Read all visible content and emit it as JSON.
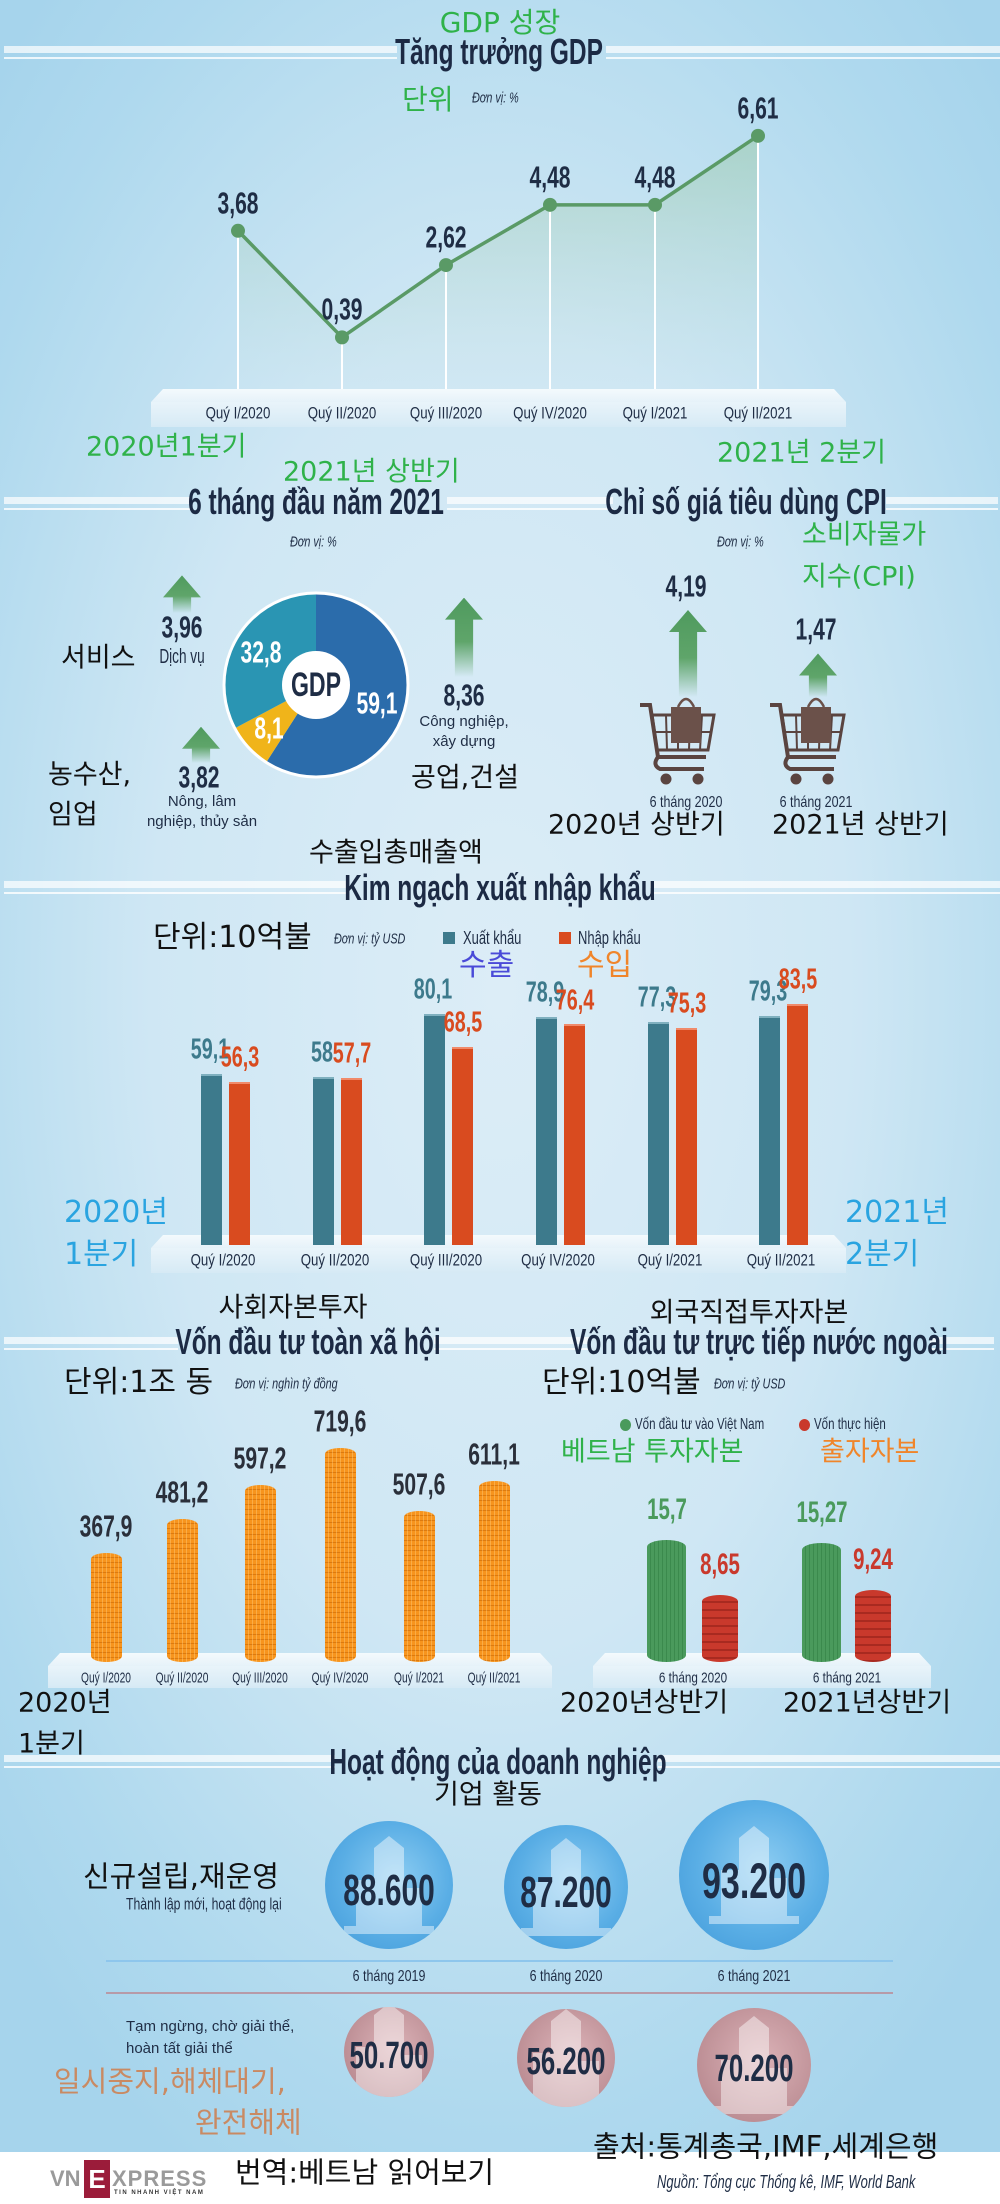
{
  "gdp": {
    "title_ko": "GDP 성장",
    "unit_ko": "단위",
    "unit": "Đơn vị: %",
    "note_start_ko": "2020년1분기",
    "note_half_ko": "2021년 상반기",
    "note_end_ko": "2021년 2분기"
  },
  "structure": {
    "unit": "Đơn vị: %",
    "center": "GDP",
    "services_ko": "서비스",
    "agri_ko_1": "농수산,",
    "agri_ko_2": "임업",
    "industry_ko": "공업,건설"
  },
  "cpi": {
    "unit": "Đơn vị: %",
    "title_ko_1": "소비자물가",
    "title_ko_2": "지수(CPI)",
    "period_ko": [
      "2020년 상반기",
      "2021년 상반기"
    ]
  },
  "trade": {
    "title_ko": "수출입총매출액",
    "unit_ko": "단위:10억불",
    "unit": "Đơn vị: tỷ USD",
    "export_ko": "수출",
    "import_ko": "수입",
    "start_ko_1": "2020년",
    "start_ko_2": "1분기",
    "end_ko_1": "2021년",
    "end_ko_2": "2분기"
  },
  "social": {
    "title_ko": "사회자본투자",
    "unit_ko": "단위:1조 동",
    "unit": "Đơn vị: nghìn tỷ đồng",
    "start_ko_1": "2020년",
    "start_ko_2": "1분기"
  },
  "fdi": {
    "title_ko": "외국직접투자자본",
    "unit_ko": "단위:10억불",
    "unit": "Đơn vị: tỷ USD",
    "legend_ko": [
      "베트남 투자자본",
      "출자자본"
    ],
    "period_ko": [
      "2020년상반기",
      "2021년상반기"
    ]
  },
  "enterprise": {
    "title_ko": "기업 활동",
    "new_ko": "신규설립,재운영",
    "new": "Thành lập mới, hoạt động lại",
    "closed": "Tạm ngừng, chờ giải thể, hoàn tất giải thể",
    "closed_ko_1": "일시중지,해체대기,",
    "closed_ko_2": "완전해체"
  },
  "footer": {
    "logo_parts": [
      "VN",
      "E",
      "XPRESS"
    ],
    "logo_tagline": "TIN NHANH VIỆT NAM",
    "translation_ko": "번역:베트남 읽어보기",
    "source_ko": "출처:통계총국,IMF,세계은행",
    "source": "Nguồn: Tổng cục Thống kê, IMF, World Bank"
  },
  "colors": {
    "line": "#5a9a66",
    "export": "#3d7a8c",
    "import": "#d94b1f",
    "coin": "#f7941d",
    "fdi_green": "#4a9a5c",
    "fdi_red": "#c9392c",
    "title": "#1c2a44",
    "korean_green": "#2fb24a"
  },
  "chart_data": [
    {
      "type": "line",
      "title": "Tăng trưởng GDP",
      "unit": "Đơn vị: %",
      "categories": [
        "Quý I/2020",
        "Quý II/2020",
        "Quý III/2020",
        "Quý IV/2020",
        "Quý I/2021",
        "Quý II/2021"
      ],
      "values": [
        3.68,
        0.39,
        2.62,
        4.48,
        4.48,
        6.61
      ],
      "labels": [
        "3,68",
        "0,39",
        "2,62",
        "4,48",
        "4,48",
        "6,61"
      ]
    },
    {
      "type": "pie",
      "title": "6 tháng đầu năm 2021",
      "unit": "Đơn vị: %",
      "categories": [
        "Công nghiệp, xây dựng",
        "Nông, lâm nghiệp, thủy sản",
        "Dịch vụ"
      ],
      "values": [
        59.1,
        8.1,
        32.8
      ],
      "labels": [
        "59,1",
        "8,1",
        "32,8"
      ],
      "growth": [
        8.36,
        3.82,
        3.96
      ],
      "growth_labels": [
        "8,36",
        "3,82",
        "3,96"
      ],
      "colors": [
        "#2b6cab",
        "#f0b41a",
        "#2a95b3"
      ]
    },
    {
      "type": "bar",
      "title": "Chỉ số giá tiêu dùng CPI",
      "unit": "Đơn vị: %",
      "categories": [
        "6 tháng 2020",
        "6 tháng 2021"
      ],
      "values": [
        4.19,
        1.47
      ],
      "labels": [
        "4,19",
        "1,47"
      ]
    },
    {
      "type": "bar",
      "title": "Kim ngạch xuất nhập khẩu",
      "unit": "Đơn vị: tỷ USD",
      "categories": [
        "Quý I/2020",
        "Quý II/2020",
        "Quý III/2020",
        "Quý IV/2020",
        "Quý I/2021",
        "Quý II/2021"
      ],
      "legend": "top",
      "series": [
        {
          "name": "Xuất khẩu",
          "values": [
            59.1,
            58,
            80.1,
            78.9,
            77.3,
            79.3
          ],
          "labels": [
            "59,1",
            "58",
            "80,1",
            "78,9",
            "77,3",
            "79,3"
          ],
          "color": "#3d7a8c"
        },
        {
          "name": "Nhập khẩu",
          "values": [
            56.3,
            57.7,
            68.5,
            76.4,
            75.3,
            83.5
          ],
          "labels": [
            "56,3",
            "57,7",
            "68,5",
            "76,4",
            "75,3",
            "83,5"
          ],
          "color": "#d94b1f"
        }
      ]
    },
    {
      "type": "bar",
      "title": "Vốn đầu tư toàn xã hội",
      "unit": "Đơn vị: nghìn tỷ đồng",
      "categories": [
        "Quý I/2020",
        "Quý II/2020",
        "Quý III/2020",
        "Quý IV/2020",
        "Quý I/2021",
        "Quý II/2021"
      ],
      "values": [
        367.9,
        481.2,
        597.2,
        719.6,
        507.6,
        611.1
      ],
      "labels": [
        "367,9",
        "481,2",
        "597,2",
        "719,6",
        "507,6",
        "611,1"
      ]
    },
    {
      "type": "bar",
      "title": "Vốn đầu tư trực tiếp nước ngoài",
      "unit": "Đơn vị: tỷ USD",
      "categories": [
        "6 tháng 2020",
        "6 tháng 2021"
      ],
      "legend": "top",
      "series": [
        {
          "name": "Vốn đầu tư vào Việt Nam",
          "values": [
            15.7,
            15.27
          ],
          "labels": [
            "15,7",
            "15,27"
          ],
          "color": "#4a9a5c"
        },
        {
          "name": "Vốn thực hiện",
          "values": [
            8.65,
            9.24
          ],
          "labels": [
            "8,65",
            "9,24"
          ],
          "color": "#c9392c"
        }
      ]
    },
    {
      "type": "table",
      "title": "Hoạt động của doanh nghiệp",
      "categories": [
        "6 tháng 2019",
        "6 tháng 2020",
        "6 tháng 2021"
      ],
      "rows": [
        {
          "values": [
            88600,
            87200,
            93200
          ],
          "labels": [
            "88.600",
            "87.200",
            "93.200"
          ]
        },
        {
          "values": [
            50700,
            56200,
            70200
          ],
          "labels": [
            "50.700",
            "56.200",
            "70.200"
          ]
        }
      ]
    }
  ]
}
